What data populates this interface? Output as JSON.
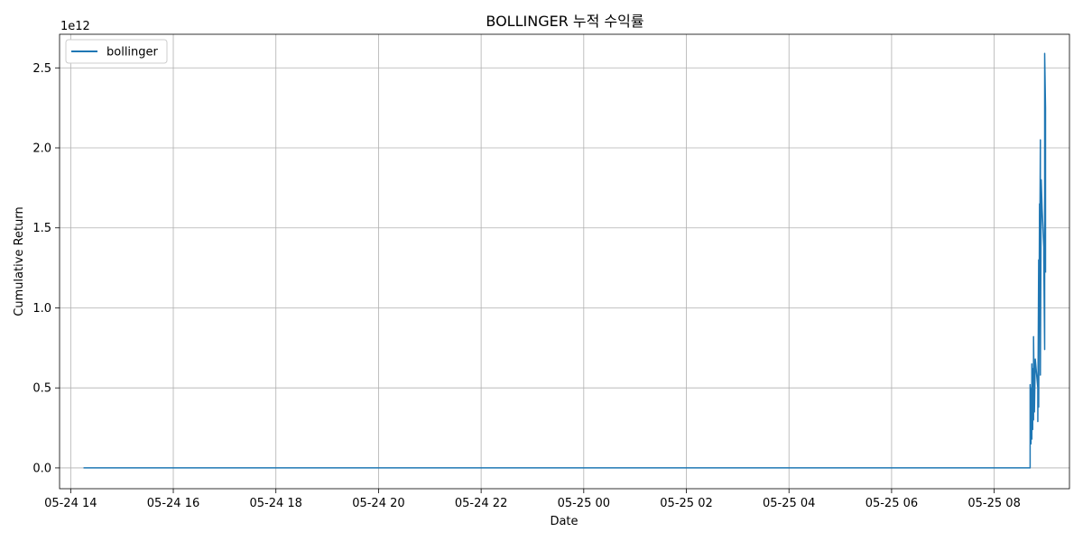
{
  "chart_data": {
    "type": "line",
    "title": "BOLLINGER 누적 수익률",
    "xlabel": "Date",
    "ylabel": "Cumulative Return",
    "y_offset_text": "1e12",
    "y_scale_factor": 1000000000000.0,
    "grid": true,
    "legend_placement": "top-left",
    "xlim": [
      "2024-05-24 13:47",
      "2024-05-25 09:28"
    ],
    "ylim": [
      -0.13,
      2.71
    ],
    "x_ticks": [
      {
        "value": "2024-05-24 14:00",
        "label": "05-24 14"
      },
      {
        "value": "2024-05-24 16:00",
        "label": "05-24 16"
      },
      {
        "value": "2024-05-24 18:00",
        "label": "05-24 18"
      },
      {
        "value": "2024-05-24 20:00",
        "label": "05-24 20"
      },
      {
        "value": "2024-05-24 22:00",
        "label": "05-24 22"
      },
      {
        "value": "2024-05-25 00:00",
        "label": "05-25 00"
      },
      {
        "value": "2024-05-25 02:00",
        "label": "05-25 02"
      },
      {
        "value": "2024-05-25 04:00",
        "label": "05-25 04"
      },
      {
        "value": "2024-05-25 06:00",
        "label": "05-25 06"
      },
      {
        "value": "2024-05-25 08:00",
        "label": "05-25 08"
      }
    ],
    "y_ticks": [
      {
        "value": 0.0,
        "label": "0.0"
      },
      {
        "value": 0.5,
        "label": "0.5"
      },
      {
        "value": 1.0,
        "label": "1.0"
      },
      {
        "value": 1.5,
        "label": "1.5"
      },
      {
        "value": 2.0,
        "label": "2.0"
      },
      {
        "value": 2.5,
        "label": "2.5"
      }
    ],
    "series": [
      {
        "name": "bollinger",
        "color": "#1f77b4",
        "points": [
          [
            "2024-05-24 14:15",
            0.0
          ],
          [
            "2024-05-25 08:42",
            0.0
          ],
          [
            "2024-05-25 08:42",
            0.52
          ],
          [
            "2024-05-25 08:43",
            0.15
          ],
          [
            "2024-05-25 08:43",
            0.5
          ],
          [
            "2024-05-25 08:44",
            0.18
          ],
          [
            "2024-05-25 08:44",
            0.65
          ],
          [
            "2024-05-25 08:45",
            0.24
          ],
          [
            "2024-05-25 08:45",
            0.62
          ],
          [
            "2024-05-25 08:46",
            0.3
          ],
          [
            "2024-05-25 08:46",
            0.82
          ],
          [
            "2024-05-25 08:47",
            0.35
          ],
          [
            "2024-05-25 08:48",
            0.68
          ],
          [
            "2024-05-25 08:49",
            0.62
          ],
          [
            "2024-05-25 08:50",
            0.56
          ],
          [
            "2024-05-25 08:51",
            0.5
          ],
          [
            "2024-05-25 08:51",
            0.29
          ],
          [
            "2024-05-25 08:52",
            1.3
          ],
          [
            "2024-05-25 08:52",
            0.38
          ],
          [
            "2024-05-25 08:53",
            1.65
          ],
          [
            "2024-05-25 08:53",
            1.1
          ],
          [
            "2024-05-25 08:54",
            2.05
          ],
          [
            "2024-05-25 08:54",
            0.58
          ],
          [
            "2024-05-25 08:55",
            1.8
          ],
          [
            "2024-05-25 08:56",
            1.62
          ],
          [
            "2024-05-25 08:57",
            1.5
          ],
          [
            "2024-05-25 08:58",
            1.38
          ],
          [
            "2024-05-25 08:58",
            1.3
          ],
          [
            "2024-05-25 08:59",
            0.74
          ],
          [
            "2024-05-25 08:59",
            2.59
          ],
          [
            "2024-05-25 09:00",
            2.25
          ],
          [
            "2024-05-25 09:00",
            1.22
          ]
        ]
      }
    ]
  }
}
